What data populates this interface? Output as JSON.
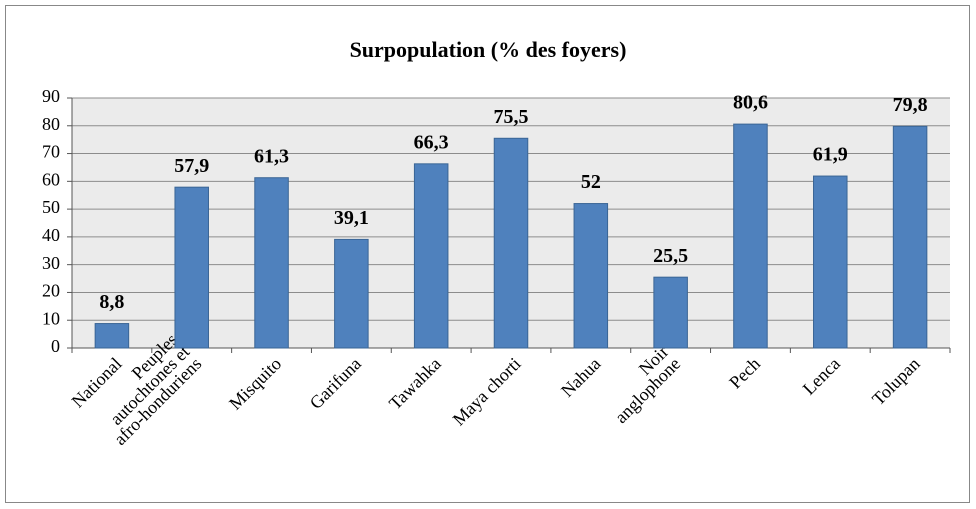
{
  "chart_data": {
    "type": "bar",
    "title": "Surpopulation (% des foyers)",
    "categories": [
      "National",
      "Peuples\nautochtones et\nafro-honduriens",
      "Misquito",
      "Garifuna",
      "Tawahka",
      "Maya chorti",
      "Nahua",
      "Noir\nanglophone",
      "Pech",
      "Lenca",
      "Tolupan"
    ],
    "values": [
      8.8,
      57.9,
      61.3,
      39.1,
      66.3,
      75.5,
      52,
      25.5,
      80.6,
      61.9,
      79.8
    ],
    "value_labels": [
      "8,8",
      "57,9",
      "61,3",
      "39,1",
      "66,3",
      "75,5",
      "52",
      "25,5",
      "80,6",
      "61,9",
      "79,8"
    ],
    "color": "#4f81bd",
    "ylim": [
      0,
      90
    ],
    "yticks": [
      0,
      10,
      20,
      30,
      40,
      50,
      60,
      70,
      80,
      90
    ],
    "grid": true
  }
}
